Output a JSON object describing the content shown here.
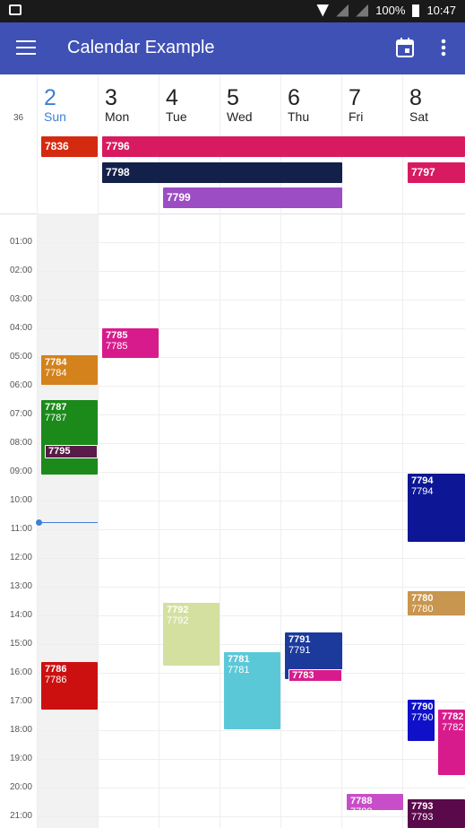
{
  "statusbar": {
    "battery_text": "100%",
    "time": "10:47"
  },
  "appbar": {
    "title": "Calendar Example"
  },
  "week_number": "36",
  "days": [
    {
      "num": "2",
      "name": "Sun"
    },
    {
      "num": "3",
      "name": "Mon"
    },
    {
      "num": "4",
      "name": "Tue"
    },
    {
      "num": "5",
      "name": "Wed"
    },
    {
      "num": "6",
      "name": "Thu"
    },
    {
      "num": "7",
      "name": "Fri"
    },
    {
      "num": "8",
      "name": "Sat"
    }
  ],
  "hours": [
    "01:00",
    "02:00",
    "03:00",
    "04:00",
    "05:00",
    "06:00",
    "07:00",
    "08:00",
    "09:00",
    "10:00",
    "11:00",
    "12:00",
    "13:00",
    "14:00",
    "15:00",
    "16:00",
    "17:00",
    "18:00",
    "19:00",
    "20:00",
    "21:00"
  ],
  "allday_events": [
    {
      "label": "7836",
      "color": "#d42a0f"
    },
    {
      "label": "7796",
      "color": "#d81b60"
    },
    {
      "label": "7798",
      "color": "#13214a"
    },
    {
      "label": "7797",
      "color": "#d81b60"
    },
    {
      "label": "7799",
      "color": "#9c4dc4"
    }
  ],
  "events": [
    {
      "title": "7785",
      "sub": "7785",
      "color": "#d81b8c"
    },
    {
      "title": "7784",
      "sub": "7784",
      "color": "#d4821b"
    },
    {
      "title": "7787",
      "sub": "7787",
      "color": "#1b8a1b"
    },
    {
      "title": "7795",
      "sub": "",
      "color": "#5a1a4a"
    },
    {
      "title": "7794",
      "sub": "7794",
      "color": "#0d1694"
    },
    {
      "title": "7780",
      "sub": "7780",
      "color": "#c8964e"
    },
    {
      "title": "7792",
      "sub": "7792",
      "color": "#d4e0a0"
    },
    {
      "title": "7781",
      "sub": "7781",
      "color": "#5bc8d8"
    },
    {
      "title": "7791",
      "sub": "7791",
      "color": "#1b3a9c"
    },
    {
      "title": "7783",
      "sub": "",
      "color": "#d81b8c"
    },
    {
      "title": "7786",
      "sub": "7786",
      "color": "#cc1010"
    },
    {
      "title": "7790",
      "sub": "7790",
      "color": "#1010c8"
    },
    {
      "title": "7782",
      "sub": "7782",
      "color": "#d81b8c"
    },
    {
      "title": "7788",
      "sub": "7788",
      "color": "#c84dc8"
    },
    {
      "title": "7793",
      "sub": "7793",
      "color": "#5a0a4a"
    }
  ]
}
